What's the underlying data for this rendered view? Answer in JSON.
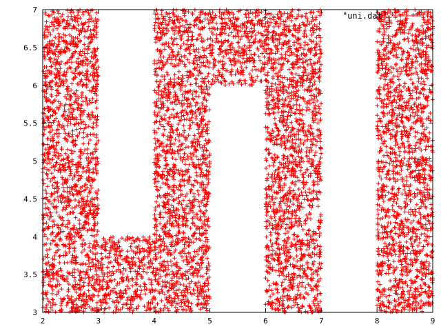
{
  "chart_data": {
    "type": "scatter",
    "title": "",
    "xlabel": "",
    "ylabel": "",
    "xlim": [
      2,
      9
    ],
    "ylim": [
      3,
      7
    ],
    "xticks": [
      "2",
      "3",
      "4",
      "5",
      "6",
      "7",
      "8",
      "9"
    ],
    "yticks": [
      "3",
      "3.5",
      "4",
      "4.5",
      "5",
      "5.5",
      "6",
      "6.5",
      "7"
    ],
    "grid": false,
    "legend": {
      "position": "top-right",
      "label": "\"uni.dat\""
    },
    "marker": "+",
    "color": "#ff0000",
    "series": [
      {
        "name": "\"uni.dat\"",
        "description_regions": [
          {
            "letter": "U",
            "x": [
              2,
              3
            ],
            "y": [
              3,
              7
            ]
          },
          {
            "letter": "U",
            "x": [
              3,
              4
            ],
            "y": [
              3,
              4
            ]
          },
          {
            "letter": "U",
            "x": [
              4,
              5
            ],
            "y": [
              3,
              7
            ]
          },
          {
            "letter": "N",
            "x": [
              5,
              6
            ],
            "y": [
              6,
              7
            ]
          },
          {
            "letter": "N",
            "x": [
              6,
              7
            ],
            "y": [
              3,
              7
            ]
          },
          {
            "letter": "I",
            "x": [
              8,
              9
            ],
            "y": [
              3,
              7
            ]
          }
        ],
        "points_per_unit_area": 400
      }
    ]
  }
}
